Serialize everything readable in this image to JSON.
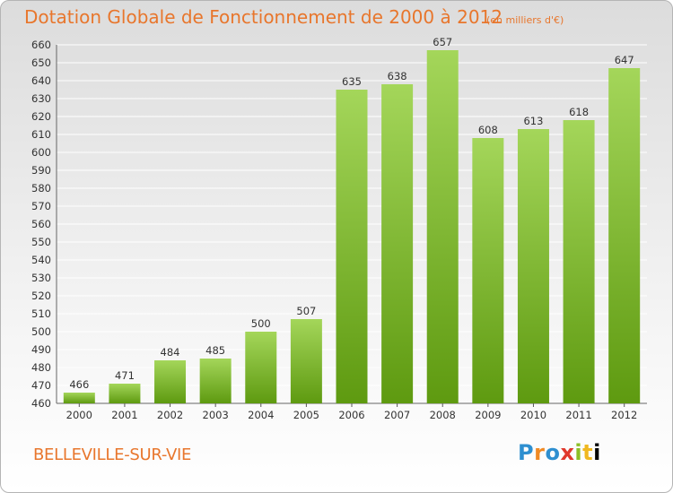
{
  "header": {
    "title": "Dotation Globale de Fonctionnement de 2000 à 2012",
    "unit_note": "(en milliers d'€)"
  },
  "footer": {
    "city": "BELLEVILLE-SUR-VIE",
    "logo": "Proxiti"
  },
  "colors": {
    "text_accent": "#e8762c",
    "bar_top": "#a4d65a",
    "bar_bottom": "#5e9a10",
    "grid": "#ffffff"
  },
  "chart_data": {
    "type": "bar",
    "title": "Dotation Globale de Fonctionnement de 2000 à 2012",
    "subtitle": "(en milliers d'€)",
    "xlabel": "",
    "ylabel": "",
    "categories": [
      "2000",
      "2001",
      "2002",
      "2003",
      "2004",
      "2005",
      "2006",
      "2007",
      "2008",
      "2009",
      "2010",
      "2011",
      "2012"
    ],
    "values": [
      466,
      471,
      484,
      485,
      500,
      507,
      635,
      638,
      657,
      608,
      613,
      618,
      647
    ],
    "ylim": [
      460,
      660
    ],
    "ytick_step": 10,
    "grid": true,
    "legend": "none"
  }
}
